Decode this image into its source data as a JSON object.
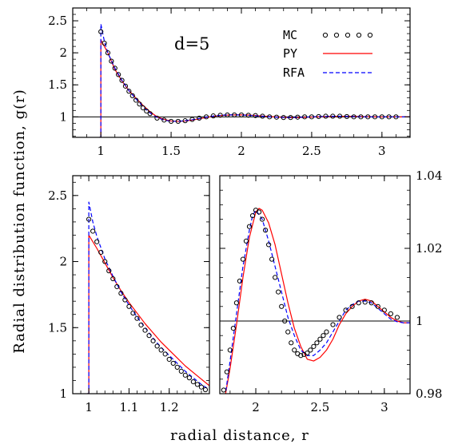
{
  "chart_data": [
    {
      "type": "line",
      "panel": "top",
      "annotation": "d=5",
      "xlim": [
        0.8,
        3.2
      ],
      "ylim": [
        0.68,
        2.7
      ],
      "xticks": [
        1,
        1.5,
        2,
        2.5,
        3
      ],
      "xtick_labels": [
        "1",
        "1.5",
        "2",
        "2.5",
        "3"
      ],
      "yticks": [
        1,
        1.5,
        2,
        2.5
      ],
      "ytick_labels": [
        "1",
        "1.5",
        "2",
        "2.5"
      ],
      "reference_line": 1,
      "legend": {
        "placement": "top-right",
        "entries": [
          "MC",
          "PY",
          "RFA"
        ]
      },
      "series": [
        {
          "name": "MC",
          "style": "open-circles",
          "color": "#000000",
          "x": [
            1.0,
            1.025,
            1.05,
            1.075,
            1.1,
            1.125,
            1.15,
            1.175,
            1.2,
            1.225,
            1.25,
            1.275,
            1.3,
            1.325,
            1.35,
            1.4,
            1.45,
            1.5,
            1.55,
            1.6,
            1.65,
            1.7,
            1.75,
            1.8,
            1.85,
            1.9,
            1.95,
            2.0,
            2.05,
            2.1,
            2.15,
            2.2,
            2.25,
            2.3,
            2.35,
            2.4,
            2.45,
            2.5,
            2.55,
            2.6,
            2.65,
            2.7,
            2.75,
            2.8,
            2.85,
            2.9,
            2.95,
            3.0,
            3.05,
            3.1
          ],
          "y": [
            2.33,
            2.15,
            2.0,
            1.87,
            1.76,
            1.66,
            1.57,
            1.48,
            1.4,
            1.33,
            1.26,
            1.2,
            1.14,
            1.09,
            1.05,
            0.98,
            0.95,
            0.93,
            0.93,
            0.94,
            0.96,
            0.98,
            1.0,
            1.015,
            1.025,
            1.03,
            1.03,
            1.03,
            1.025,
            1.02,
            1.01,
            1.0,
            0.995,
            0.99,
            0.99,
            0.995,
            1.0,
            1.0,
            1.005,
            1.01,
            1.01,
            1.01,
            1.005,
            1.0,
            1.0,
            1.0,
            1.0,
            1.0,
            1.0,
            1.0
          ]
        },
        {
          "name": "PY",
          "style": "solid",
          "color": "#ff0000",
          "x": [
            0.99,
            1.0,
            1.0,
            1.05,
            1.1,
            1.15,
            1.2,
            1.25,
            1.3,
            1.35,
            1.4,
            1.45,
            1.5,
            1.55,
            1.6,
            1.65,
            1.7,
            1.75,
            1.8,
            1.85,
            1.9,
            1.95,
            2.0,
            2.05,
            2.1,
            2.15,
            2.2,
            2.25,
            2.3,
            2.35,
            2.4,
            2.45,
            2.5,
            2.55,
            2.6,
            2.65,
            2.7,
            2.75,
            2.8,
            2.85,
            2.9,
            2.95,
            3.0,
            3.05,
            3.1,
            3.2
          ],
          "y": [
            0.68,
            0.68,
            2.2,
            2.0,
            1.74,
            1.56,
            1.41,
            1.29,
            1.18,
            1.08,
            1.0,
            0.96,
            0.935,
            0.93,
            0.935,
            0.95,
            0.97,
            0.99,
            1.01,
            1.02,
            1.028,
            1.031,
            1.031,
            1.028,
            1.022,
            1.013,
            1.005,
            0.998,
            0.993,
            0.99,
            0.99,
            0.993,
            0.997,
            1.0,
            1.004,
            1.007,
            1.008,
            1.008,
            1.007,
            1.004,
            1.002,
            1.0,
            0.999,
            0.999,
            1.0,
            1.0
          ]
        },
        {
          "name": "RFA",
          "style": "dashed",
          "color": "#0000ff",
          "x": [
            0.99,
            1.0,
            1.0,
            1.025,
            1.05,
            1.1,
            1.15,
            1.2,
            1.25,
            1.3,
            1.35,
            1.4,
            1.45,
            1.5,
            1.55,
            1.6,
            1.65,
            1.7,
            1.75,
            1.8,
            1.85,
            1.9,
            1.95,
            2.0,
            2.05,
            2.1,
            2.15,
            2.2,
            2.25,
            2.3,
            2.35,
            2.4,
            2.45,
            2.5,
            2.55,
            2.6,
            2.65,
            2.7,
            2.75,
            2.8,
            2.85,
            2.9,
            2.95,
            3.0,
            3.05,
            3.1,
            3.2
          ],
          "y": [
            0.68,
            0.68,
            2.45,
            2.18,
            2.0,
            1.76,
            1.57,
            1.41,
            1.28,
            1.16,
            1.06,
            0.99,
            0.95,
            0.93,
            0.93,
            0.94,
            0.955,
            0.975,
            0.995,
            1.012,
            1.024,
            1.03,
            1.031,
            1.029,
            1.024,
            1.017,
            1.009,
            1.001,
            0.995,
            0.991,
            0.99,
            0.992,
            0.996,
            1.0,
            1.004,
            1.007,
            1.009,
            1.009,
            1.007,
            1.005,
            1.002,
            1.0,
            0.999,
            0.999,
            1.0,
            1.0,
            1.0
          ]
        }
      ]
    },
    {
      "type": "line",
      "panel": "bottom-left",
      "xlim": [
        0.96,
        1.3
      ],
      "ylim": [
        1.0,
        2.65
      ],
      "xticks": [
        1,
        1.1,
        1.2
      ],
      "xtick_labels": [
        "1",
        "1.1",
        "1.2"
      ],
      "yticks": [
        1,
        1.5,
        2,
        2.5
      ],
      "ytick_labels": [
        "1",
        "1.5",
        "2",
        "2.5"
      ],
      "series": [
        {
          "name": "MC",
          "style": "open-circles",
          "color": "#000000",
          "x": [
            1.0,
            1.01,
            1.02,
            1.03,
            1.04,
            1.05,
            1.06,
            1.07,
            1.08,
            1.09,
            1.1,
            1.11,
            1.12,
            1.13,
            1.14,
            1.15,
            1.16,
            1.17,
            1.18,
            1.19,
            1.2,
            1.21,
            1.22,
            1.23,
            1.24,
            1.25,
            1.26,
            1.27,
            1.28,
            1.29
          ],
          "y": [
            2.32,
            2.23,
            2.15,
            2.07,
            2.0,
            1.93,
            1.87,
            1.81,
            1.76,
            1.71,
            1.66,
            1.61,
            1.57,
            1.52,
            1.48,
            1.44,
            1.4,
            1.36,
            1.33,
            1.3,
            1.26,
            1.23,
            1.2,
            1.17,
            1.14,
            1.12,
            1.09,
            1.07,
            1.05,
            1.03
          ]
        },
        {
          "name": "PY",
          "style": "solid",
          "color": "#ff0000",
          "x": [
            0.996,
            1.0,
            1.0,
            1.02,
            1.04,
            1.06,
            1.08,
            1.1,
            1.12,
            1.14,
            1.16,
            1.18,
            1.2,
            1.22,
            1.24,
            1.26,
            1.28,
            1.3
          ],
          "y": [
            1.0,
            1.0,
            2.2,
            2.1,
            1.99,
            1.88,
            1.78,
            1.69,
            1.61,
            1.53,
            1.46,
            1.39,
            1.33,
            1.27,
            1.21,
            1.16,
            1.11,
            1.06
          ]
        },
        {
          "name": "RFA",
          "style": "dashed",
          "color": "#0000ff",
          "x": [
            0.996,
            1.0,
            1.0,
            1.01,
            1.02,
            1.04,
            1.06,
            1.08,
            1.1,
            1.12,
            1.14,
            1.16,
            1.18,
            1.2,
            1.22,
            1.24,
            1.26,
            1.28,
            1.3
          ],
          "y": [
            1.0,
            1.0,
            2.45,
            2.3,
            2.19,
            2.02,
            1.89,
            1.77,
            1.67,
            1.58,
            1.5,
            1.42,
            1.35,
            1.29,
            1.23,
            1.17,
            1.12,
            1.07,
            1.03
          ]
        }
      ]
    },
    {
      "type": "line",
      "panel": "bottom-right",
      "xlim": [
        1.72,
        3.2
      ],
      "ylim": [
        0.98,
        1.04
      ],
      "xticks": [
        2,
        2.5,
        3
      ],
      "xtick_labels": [
        "2",
        "2.5",
        "3"
      ],
      "yticks": [
        0.98,
        1,
        1.02,
        1.04
      ],
      "ytick_labels": [
        "0.98",
        "1",
        "1.02",
        "1.04"
      ],
      "reference_line": 1,
      "series": [
        {
          "name": "MC",
          "style": "open-circles",
          "color": "#000000",
          "x": [
            1.75,
            1.775,
            1.8,
            1.825,
            1.85,
            1.875,
            1.9,
            1.925,
            1.95,
            1.975,
            2.0,
            2.025,
            2.05,
            2.075,
            2.1,
            2.125,
            2.15,
            2.175,
            2.2,
            2.225,
            2.25,
            2.275,
            2.3,
            2.325,
            2.35,
            2.375,
            2.4,
            2.425,
            2.45,
            2.475,
            2.5,
            2.525,
            2.55,
            2.6,
            2.65,
            2.7,
            2.75,
            2.8,
            2.85,
            2.9,
            2.95,
            3.0,
            3.05,
            3.1
          ],
          "y": [
            0.981,
            0.986,
            0.992,
            0.998,
            1.005,
            1.011,
            1.017,
            1.022,
            1.026,
            1.029,
            1.0305,
            1.03,
            1.028,
            1.025,
            1.021,
            1.017,
            1.012,
            1.008,
            1.004,
            1.0,
            0.997,
            0.994,
            0.992,
            0.991,
            0.9905,
            0.9908,
            0.9912,
            0.992,
            0.993,
            0.994,
            0.995,
            0.996,
            0.997,
            0.999,
            1.001,
            1.003,
            1.004,
            1.005,
            1.0052,
            1.005,
            1.004,
            1.003,
            1.002,
            1.001
          ]
        },
        {
          "name": "PY",
          "style": "solid",
          "color": "#ff0000",
          "x": [
            1.76,
            1.8,
            1.85,
            1.9,
            1.95,
            2.0,
            2.025,
            2.05,
            2.1,
            2.15,
            2.2,
            2.25,
            2.3,
            2.35,
            2.4,
            2.45,
            2.5,
            2.55,
            2.6,
            2.65,
            2.7,
            2.75,
            2.8,
            2.85,
            2.9,
            2.95,
            3.0,
            3.05,
            3.1,
            3.15,
            3.2
          ],
          "y": [
            0.979,
            0.987,
            0.999,
            1.012,
            1.023,
            1.03,
            1.031,
            1.0305,
            1.027,
            1.021,
            1.013,
            1.005,
            0.998,
            0.993,
            0.9895,
            0.989,
            0.99,
            0.992,
            0.995,
            0.999,
            1.002,
            1.004,
            1.0055,
            1.006,
            1.0055,
            1.004,
            1.0025,
            1.001,
            1.0,
            0.9995,
            0.9995
          ]
        },
        {
          "name": "RFA",
          "style": "dashed",
          "color": "#0000ff",
          "x": [
            1.76,
            1.8,
            1.85,
            1.9,
            1.95,
            1.975,
            2.0,
            2.05,
            2.1,
            2.15,
            2.2,
            2.25,
            2.3,
            2.35,
            2.4,
            2.45,
            2.5,
            2.55,
            2.6,
            2.65,
            2.7,
            2.75,
            2.8,
            2.85,
            2.9,
            2.95,
            3.0,
            3.05,
            3.1,
            3.15,
            3.2
          ],
          "y": [
            0.979,
            0.989,
            1.002,
            1.015,
            1.025,
            1.029,
            1.0305,
            1.028,
            1.022,
            1.015,
            1.008,
            1.001,
            0.996,
            0.992,
            0.9905,
            0.9905,
            0.992,
            0.994,
            0.997,
            1.0,
            1.003,
            1.0045,
            1.0055,
            1.0055,
            1.005,
            1.0035,
            1.002,
            1.0005,
            0.9998,
            0.9995,
            0.9995
          ]
        }
      ]
    }
  ],
  "labels": {
    "y_axis": "Radial distribution function, g(r)",
    "x_axis": "radial distance, r"
  },
  "colors": {
    "mc": "#000000",
    "py": "#ff0000",
    "rfa": "#0000ff",
    "frame": "#000000"
  }
}
